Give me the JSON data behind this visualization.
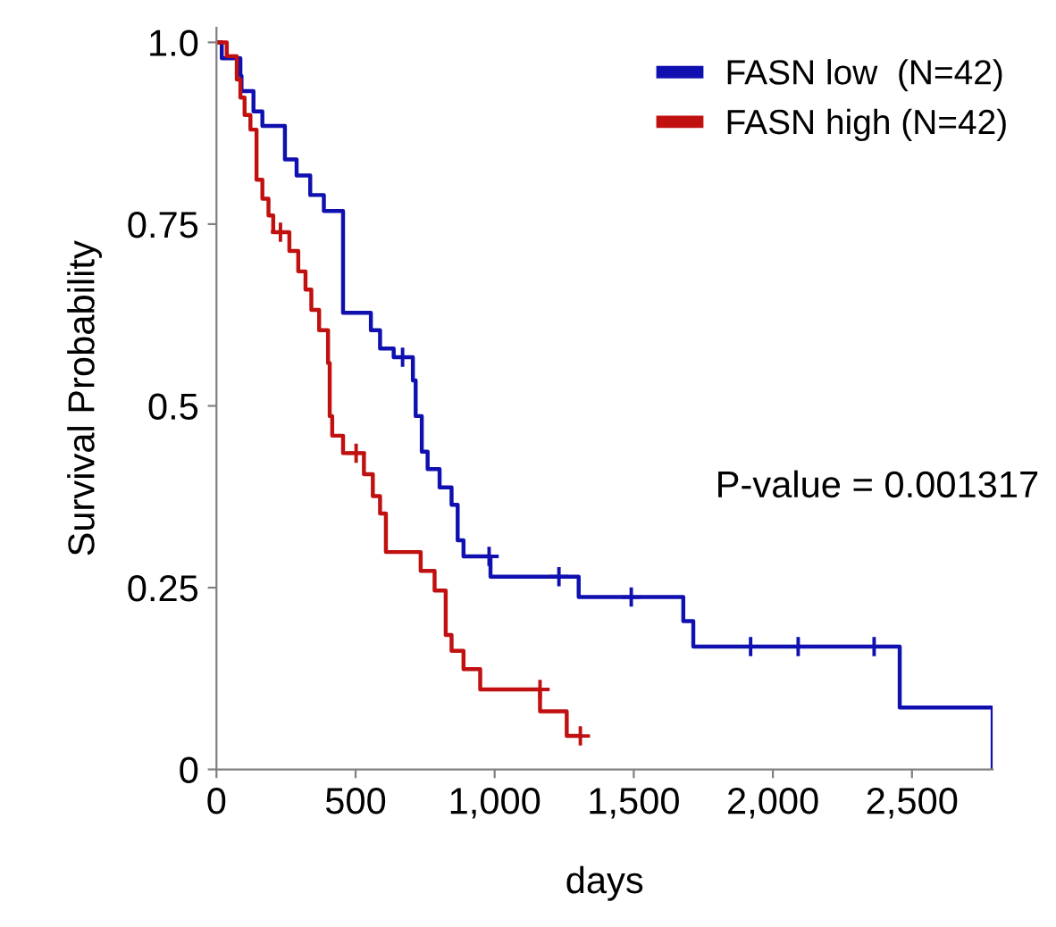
{
  "chart_data": {
    "type": "step",
    "xlabel": "days",
    "ylabel": "Survival Probability",
    "xlim": [
      0,
      2790
    ],
    "ylim": [
      0,
      1.02
    ],
    "xticks": [
      0,
      500,
      {
        "value": 1000,
        "label": "1,000"
      },
      {
        "value": 1500,
        "label": "1,500"
      },
      {
        "value": 2000,
        "label": "2,000"
      },
      {
        "value": 2500,
        "label": "2,500"
      }
    ],
    "yticks": [
      0,
      0.25,
      0.5,
      0.75,
      {
        "value": 1,
        "label": "1.0"
      }
    ],
    "grid": false,
    "legend": "top right",
    "line_style": "solid",
    "marker": "none",
    "annotations": [
      {
        "text": "P-value = 0.001317"
      }
    ],
    "series": [
      {
        "name": "FASN low  (N=42)",
        "color": "#1010b0",
        "x": [
          0,
          19,
          86,
          90,
          133,
          165,
          246,
          288,
          337,
          386,
          455,
          555,
          588,
          637,
          706,
          716,
          738,
          759,
          802,
          845,
          867,
          888,
          985,
          1302,
          1678,
          1714,
          2456,
          2790
        ],
        "values": [
          1.0,
          0.978,
          0.954,
          0.933,
          0.905,
          0.885,
          0.839,
          0.817,
          0.79,
          0.768,
          0.628,
          0.604,
          0.579,
          0.567,
          0.535,
          0.486,
          0.437,
          0.413,
          0.388,
          0.364,
          0.315,
          0.293,
          0.265,
          0.237,
          0.204,
          0.169,
          0.085,
          0
        ]
      },
      {
        "name": "FASN high (N=42)",
        "color": "#c01010",
        "x": [
          0,
          37,
          73,
          86,
          101,
          122,
          144,
          165,
          187,
          204,
          262,
          294,
          320,
          341,
          369,
          401,
          407,
          416,
          455,
          530,
          562,
          588,
          609,
          734,
          784,
          824,
          845,
          888,
          948,
          1163,
          1259,
          1308
        ],
        "values": [
          1.0,
          0.981,
          0.949,
          0.924,
          0.9,
          0.88,
          0.811,
          0.785,
          0.762,
          0.739,
          0.713,
          0.685,
          0.66,
          0.632,
          0.604,
          0.559,
          0.486,
          0.459,
          0.435,
          0.406,
          0.376,
          0.352,
          0.299,
          0.273,
          0.246,
          0.185,
          0.163,
          0.138,
          0.11,
          0.08,
          0.046,
          0.046
        ]
      },
      {
        "type": "scatter",
        "marker": "cross",
        "color": "#1010b0",
        "x": [
          669,
          980,
          1231,
          1491,
          1920,
          2091,
          2364
        ],
        "values": [
          0.567,
          0.293,
          0.265,
          0.237,
          0.169,
          0.169,
          0.169
        ]
      },
      {
        "type": "scatter",
        "marker": "cross",
        "color": "#c01010",
        "x": [
          230,
          502,
          1163,
          1308
        ],
        "values": [
          0.739,
          0.435,
          0.11,
          0.046
        ]
      }
    ]
  }
}
